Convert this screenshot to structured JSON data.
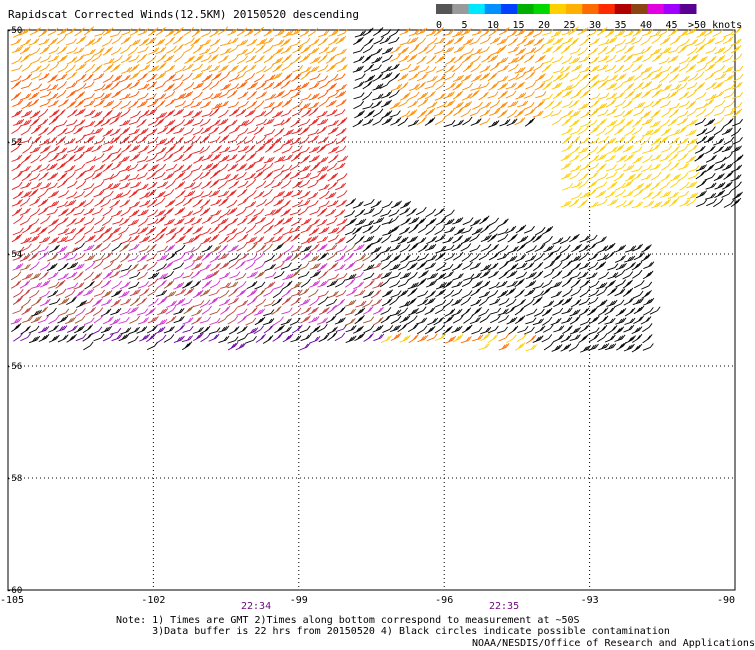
{
  "title": "Rapidscat Corrected Winds(12.5KM) 20150520 descending",
  "legend": {
    "colors": [
      "#555555",
      "#9a9a9a",
      "#00e8ff",
      "#0090ff",
      "#0040ff",
      "#00b000",
      "#00d800",
      "#ffd000",
      "#ffb000",
      "#ff6a00",
      "#ff2a00",
      "#b00000",
      "#8b4513",
      "#e000e0",
      "#a000ff",
      "#5a0090"
    ],
    "labels": [
      "0",
      "5",
      "10",
      "15",
      "20",
      "25",
      "30",
      "35",
      "40",
      "45",
      ">50 knots"
    ]
  },
  "map": {
    "lon_ticks": [
      "-105",
      "-102",
      "-99",
      "-96",
      "-93",
      "-90"
    ],
    "lat_labels": [
      "-50",
      "-52",
      "-54",
      "-56",
      "-58",
      "-60"
    ],
    "lon_range": [
      -105,
      -90
    ],
    "lat_range": [
      -60,
      -50
    ],
    "grid": "dotted"
  },
  "times": [
    {
      "label": "22:34"
    },
    {
      "label": "22:35"
    }
  ],
  "notes": {
    "line1": "Note: 1) Times are GMT 2)Times along bottom correspond to measurement at ~50S",
    "line2": "      3)Data buffer is 22 hrs from 20150520 4) Black circles indicate possible contamination"
  },
  "credit": "NOAA/NESDIS/Office of Research and Applications"
}
